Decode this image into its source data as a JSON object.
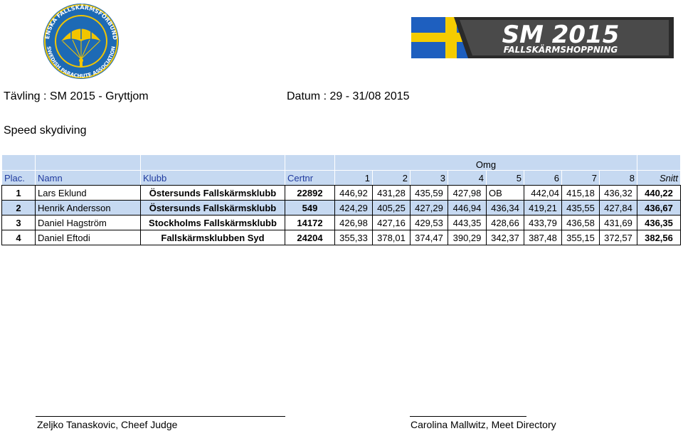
{
  "logos": {
    "left": {
      "ring_text_top": "SVENSKA FALLSKÄRMSFÖRBUNDET",
      "ring_text_bottom": "SWEDISH PARACHUTE ASSOCIATION",
      "colors": {
        "blue": "#1d6ab5",
        "gold": "#f2c500"
      }
    },
    "right": {
      "line1": "SM 2015",
      "line2": "FALLSKÄRMSHOPPNING",
      "colors": {
        "flag_blue": "#1e5fbf",
        "flag_yellow": "#f5cc00",
        "dark": "#2a2a2a"
      }
    }
  },
  "header": {
    "competition": "Tävling : SM 2015 - Gryttjom",
    "date": "Datum : 29 - 31/08 2015",
    "event": "Speed skydiving"
  },
  "table": {
    "omg_label": "Omg",
    "columns": [
      "Plac.",
      "Namn",
      "Klubb",
      "Certnr",
      "1",
      "2",
      "3",
      "4",
      "5",
      "6",
      "7",
      "8",
      "Snitt"
    ],
    "rows": [
      {
        "plac": "1",
        "namn": "Lars Eklund",
        "klubb": "Östersunds Fallskärmsklubb",
        "certnr": "22892",
        "rounds": [
          "446,92",
          "431,28",
          "435,59",
          "427,98",
          "OB",
          "442,04",
          "415,18",
          "436,32"
        ],
        "snitt": "440,22"
      },
      {
        "plac": "2",
        "namn": "Henrik Andersson",
        "klubb": "Östersunds Fallskärmsklubb",
        "certnr": "549",
        "rounds": [
          "424,29",
          "405,25",
          "427,29",
          "446,94",
          "436,34",
          "419,21",
          "435,55",
          "427,84"
        ],
        "snitt": "436,67"
      },
      {
        "plac": "3",
        "namn": "Daniel Hagström",
        "klubb": "Stockholms Fallskärmsklubb",
        "certnr": "14172",
        "rounds": [
          "426,98",
          "427,16",
          "429,53",
          "443,35",
          "428,66",
          "433,79",
          "436,58",
          "431,69"
        ],
        "snitt": "436,35"
      },
      {
        "plac": "4",
        "namn": "Daniel Eftodi",
        "klubb": "Fallskärmsklubben Syd",
        "certnr": "24204",
        "rounds": [
          "355,33",
          "378,01",
          "374,47",
          "390,29",
          "342,37",
          "387,48",
          "355,15",
          "372,57"
        ],
        "snitt": "382,56"
      }
    ]
  },
  "signatures": {
    "left": "Zeljko Tanaskovic, Cheef Judge",
    "right": "Carolina Mallwitz, Meet Directory"
  }
}
